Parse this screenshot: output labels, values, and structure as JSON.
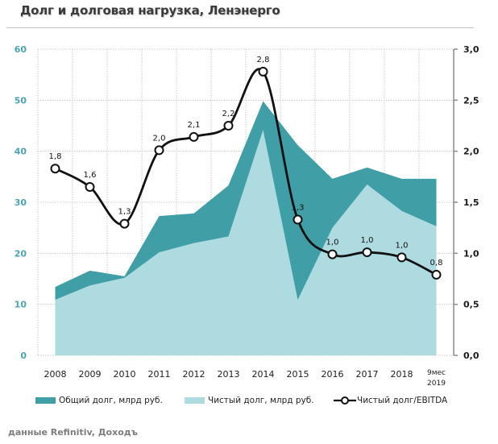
{
  "title": "Долг и долговая нагрузка, Ленэнерго",
  "source": "данные Refinitiv, Доходъ",
  "legend": {
    "total": "Общий долг, млрд руб.",
    "net": "Чистый долг, млрд руб.",
    "ratio": "Чистый долг/EBITDA"
  },
  "chart_data": {
    "type": "area",
    "title": "Долг и долговая нагрузка, Ленэнерго",
    "categories": [
      "2008",
      "2009",
      "2010",
      "2011",
      "2012",
      "2013",
      "2014",
      "2015",
      "2016",
      "2017",
      "2018",
      "9мес 2019"
    ],
    "xlabel": "",
    "ylabel": "",
    "ylim": [
      0,
      60
    ],
    "yticks": [
      "0",
      "10",
      "20",
      "30",
      "40",
      "50",
      "60"
    ],
    "y2lim": [
      0,
      3.0
    ],
    "y2ticks": [
      "0,0",
      "0,5",
      "1,0",
      "1,5",
      "2,0",
      "2,5",
      "3,0"
    ],
    "grid": true,
    "legend_position": "bottom",
    "colors": {
      "total": "#409ea7",
      "net": "#aedbe0",
      "ratio": "#111111"
    },
    "series": [
      {
        "name": "Общий долг, млрд руб.",
        "type": "area",
        "axis": "left",
        "values": [
          13.4,
          16.6,
          15.5,
          27.3,
          27.8,
          33.3,
          49.8,
          41.2,
          34.6,
          36.8,
          34.6,
          34.6
        ]
      },
      {
        "name": "Чистый долг, млрд руб.",
        "type": "area",
        "axis": "left",
        "values": [
          10.9,
          13.7,
          15.2,
          20.2,
          22.0,
          23.3,
          44.2,
          10.9,
          25.0,
          33.5,
          28.3,
          25.3
        ]
      },
      {
        "name": "Чистый долг/EBITDA",
        "type": "line",
        "axis": "right",
        "values": [
          1.83,
          1.65,
          1.29,
          2.01,
          2.14,
          2.25,
          2.78,
          1.33,
          0.99,
          1.01,
          0.96,
          0.79
        ],
        "labels": [
          "1,8",
          "1,6",
          "1,3",
          "2,0",
          "2,1",
          "2,2",
          "2,8",
          "1,3",
          "1,0",
          "1,0",
          "1,0",
          "0,8"
        ]
      }
    ]
  }
}
